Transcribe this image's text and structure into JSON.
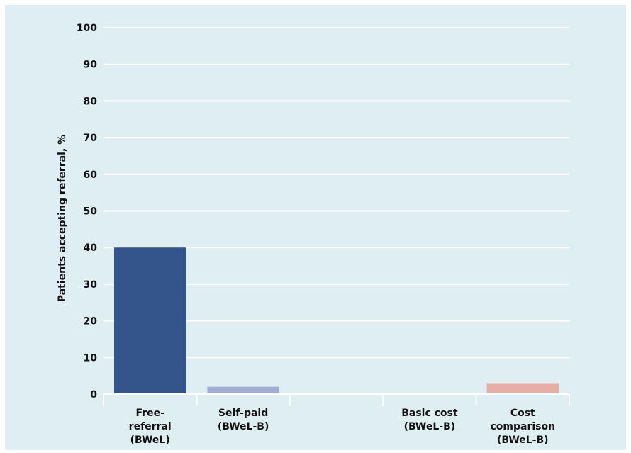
{
  "chart_data": {
    "type": "bar",
    "title": "",
    "ylabel": "Patients accepting referral, %",
    "xlabel": "",
    "ylim": [
      0,
      100
    ],
    "yticks": [
      0,
      10,
      20,
      30,
      40,
      50,
      60,
      70,
      80,
      90,
      100
    ],
    "grid": true,
    "categories": [
      [
        "Free-",
        "referral",
        "(BWeL)"
      ],
      [
        "Self-paid",
        "(BWeL-B)"
      ],
      [],
      [
        "Basic cost",
        "(BWeL-B)"
      ],
      [
        "Cost",
        "comparison",
        "(BWeL-B)"
      ]
    ],
    "values": [
      40,
      2,
      0,
      0,
      3
    ],
    "colors": [
      "#34558b",
      "#a3add4",
      "#a3add4",
      "#a3add4",
      "#e6aea6"
    ]
  }
}
